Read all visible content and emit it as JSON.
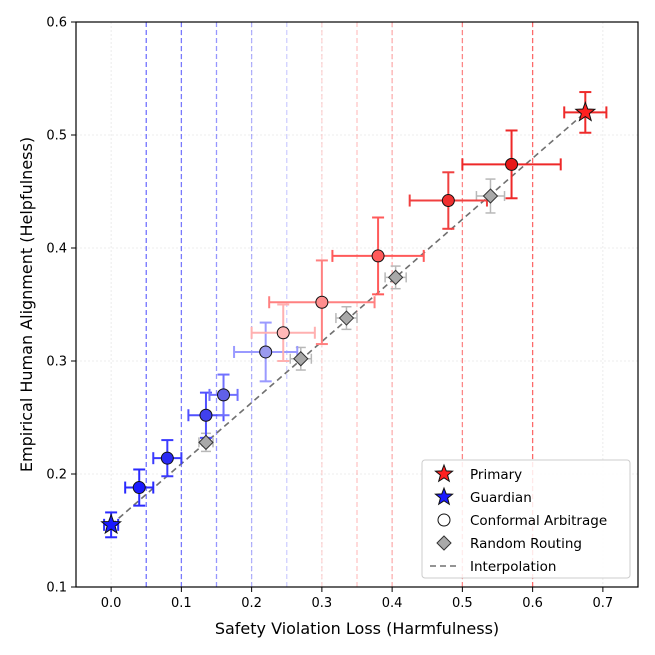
{
  "chart_data": {
    "type": "scatter",
    "xlabel": "Safety Violation Loss (Harmfulness)",
    "ylabel": "Empirical Human Alignment (Helpfulness)",
    "xlim": [
      -0.05,
      0.75
    ],
    "ylim": [
      0.1,
      0.6
    ],
    "x_ticks": [
      0.0,
      0.1,
      0.2,
      0.3,
      0.4,
      0.5,
      0.6,
      0.7
    ],
    "x_tick_labels": [
      "0.0",
      "0.1",
      "0.2",
      "0.3",
      "0.4",
      "0.5",
      "0.6",
      "0.7"
    ],
    "y_ticks": [
      0.1,
      0.2,
      0.3,
      0.4,
      0.5,
      0.6
    ],
    "y_tick_labels": [
      "0.1",
      "0.2",
      "0.3",
      "0.4",
      "0.5",
      "0.6"
    ],
    "grid": true,
    "legend_position": "bottom-right",
    "legend": {
      "primary": "Primary",
      "guardian": "Guardian",
      "conformal": "Conformal Arbitrage",
      "random": "Random Routing",
      "interpolation": "Interpolation"
    },
    "colors": {
      "primary": "#ff2020",
      "guardian": "#1a1aff",
      "random": "#a9a9a9",
      "interpolation": "#707070"
    },
    "vertical_lines": [
      {
        "x": 0.05,
        "color": "#5a5aff",
        "alpha": 0.85
      },
      {
        "x": 0.1,
        "color": "#5a5aff",
        "alpha": 0.8
      },
      {
        "x": 0.15,
        "color": "#6a6aff",
        "alpha": 0.7
      },
      {
        "x": 0.2,
        "color": "#8080ff",
        "alpha": 0.6
      },
      {
        "x": 0.25,
        "color": "#a0a0ff",
        "alpha": 0.5
      },
      {
        "x": 0.3,
        "color": "#ffb0b0",
        "alpha": 0.5
      },
      {
        "x": 0.35,
        "color": "#ffa0a0",
        "alpha": 0.6
      },
      {
        "x": 0.4,
        "color": "#ff9090",
        "alpha": 0.7
      },
      {
        "x": 0.5,
        "color": "#ff6a6a",
        "alpha": 0.8
      },
      {
        "x": 0.6,
        "color": "#ff5050",
        "alpha": 0.85
      }
    ],
    "primary": {
      "x": 0.675,
      "y": 0.52,
      "xerr": 0.03,
      "yerr": 0.018
    },
    "guardian": {
      "x": 0.0,
      "y": 0.155,
      "xerr": 0.01,
      "yerr": 0.011
    },
    "conformal": [
      {
        "x": 0.04,
        "y": 0.188,
        "xerr": 0.02,
        "yerr": 0.016,
        "color": "#1a1aff",
        "bar": "#2a2aff"
      },
      {
        "x": 0.08,
        "y": 0.214,
        "xerr": 0.02,
        "yerr": 0.016,
        "color": "#2a2af5",
        "bar": "#3a3aff"
      },
      {
        "x": 0.135,
        "y": 0.252,
        "xerr": 0.025,
        "yerr": 0.02,
        "color": "#4040ee",
        "bar": "#5050ff"
      },
      {
        "x": 0.16,
        "y": 0.27,
        "xerr": 0.02,
        "yerr": 0.018,
        "color": "#6060e8",
        "bar": "#7070ff"
      },
      {
        "x": 0.22,
        "y": 0.308,
        "xerr": 0.045,
        "yerr": 0.026,
        "color": "#9a9aee",
        "bar": "#9a9aff"
      },
      {
        "x": 0.245,
        "y": 0.325,
        "xerr": 0.045,
        "yerr": 0.025,
        "color": "#ffb8b8",
        "bar": "#ffb0b0"
      },
      {
        "x": 0.3,
        "y": 0.352,
        "xerr": 0.075,
        "yerr": 0.037,
        "color": "#ff8e8e",
        "bar": "#ff8080"
      },
      {
        "x": 0.38,
        "y": 0.393,
        "xerr": 0.065,
        "yerr": 0.034,
        "color": "#ff5a5a",
        "bar": "#ff5a5a"
      },
      {
        "x": 0.48,
        "y": 0.442,
        "xerr": 0.055,
        "yerr": 0.025,
        "color": "#f03030",
        "bar": "#f04040"
      },
      {
        "x": 0.57,
        "y": 0.474,
        "xerr": 0.07,
        "yerr": 0.03,
        "color": "#e81818",
        "bar": "#ee2828"
      }
    ],
    "random": [
      {
        "x": 0.135,
        "y": 0.228,
        "xerr": 0.01,
        "yerr": 0.008
      },
      {
        "x": 0.27,
        "y": 0.302,
        "xerr": 0.015,
        "yerr": 0.01
      },
      {
        "x": 0.335,
        "y": 0.338,
        "xerr": 0.015,
        "yerr": 0.01
      },
      {
        "x": 0.405,
        "y": 0.374,
        "xerr": 0.015,
        "yerr": 0.01
      },
      {
        "x": 0.54,
        "y": 0.446,
        "xerr": 0.02,
        "yerr": 0.015
      }
    ],
    "interpolation": {
      "from": [
        0.0,
        0.155
      ],
      "to": [
        0.675,
        0.52
      ]
    }
  }
}
